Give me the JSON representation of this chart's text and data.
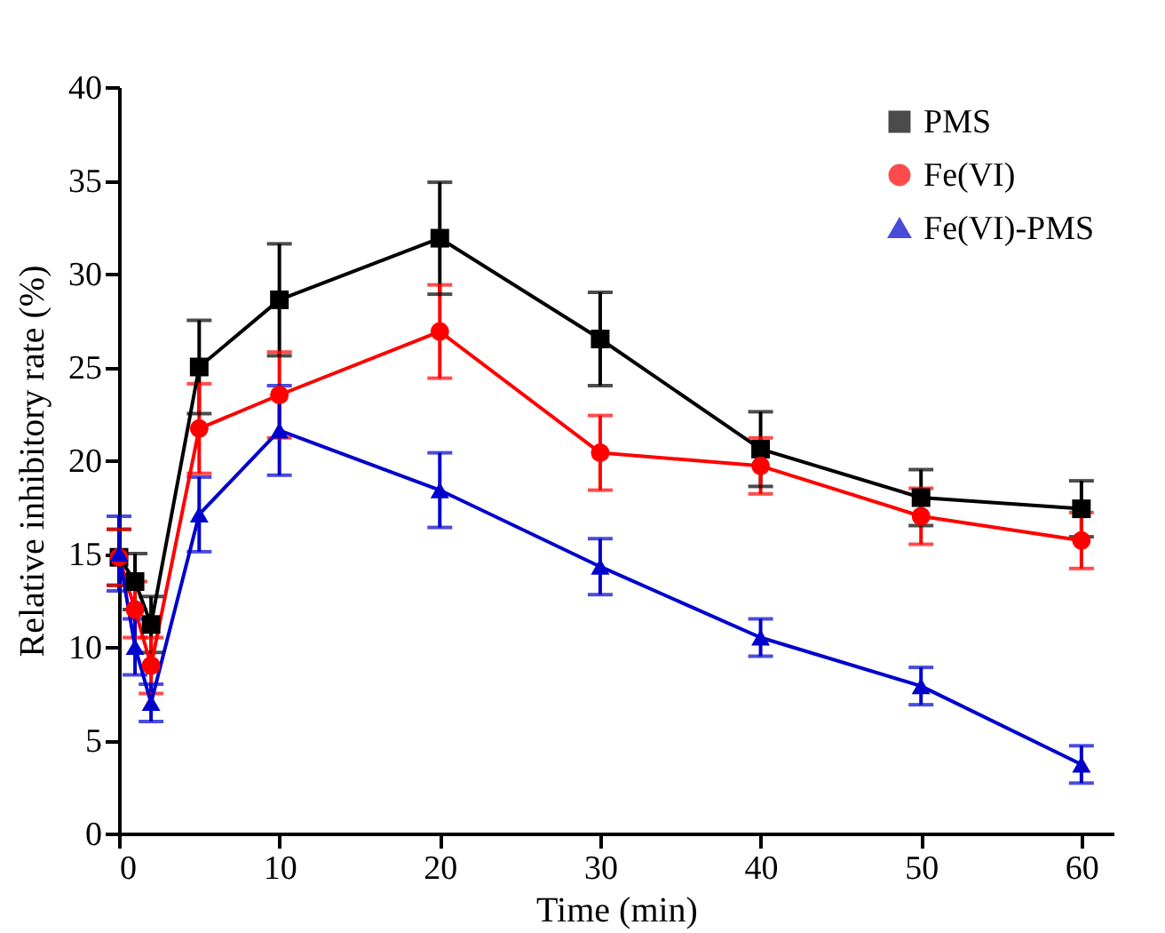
{
  "chart_data": {
    "type": "line",
    "xlabel": "Time (min)",
    "ylabel": "Relative inhibitory rate (%)",
    "x": [
      0,
      1,
      2,
      5,
      10,
      20,
      30,
      40,
      50,
      60
    ],
    "series": [
      {
        "name": "PMS",
        "color": "#000000",
        "marker": "square",
        "values": [
          14.8,
          13.5,
          11.2,
          25.0,
          28.6,
          31.9,
          26.5,
          20.6,
          18.0,
          17.4
        ],
        "errors": [
          1.5,
          1.5,
          1.5,
          2.5,
          3.0,
          3.0,
          2.5,
          2.0,
          1.5,
          1.5
        ]
      },
      {
        "name": "Fe(VI)",
        "color": "#ff0000",
        "marker": "circle",
        "values": [
          14.8,
          12.0,
          9.0,
          21.7,
          23.5,
          26.9,
          20.4,
          19.7,
          17.0,
          15.7
        ],
        "errors": [
          1.5,
          1.5,
          1.5,
          2.4,
          2.3,
          2.5,
          2.0,
          1.5,
          1.5,
          1.5
        ]
      },
      {
        "name": "Fe(VI)-PMS",
        "color": "#0000cc",
        "marker": "triangle",
        "values": [
          15.0,
          10.0,
          7.0,
          17.1,
          21.6,
          18.4,
          14.3,
          10.5,
          7.9,
          3.7
        ],
        "errors": [
          2.0,
          1.5,
          1.0,
          2.0,
          2.4,
          2.0,
          1.5,
          1.0,
          1.0,
          1.0
        ]
      }
    ],
    "xlim": [
      0,
      62
    ],
    "xticks": [
      0,
      10,
      20,
      30,
      40,
      50,
      60
    ],
    "ylim": [
      0,
      40
    ],
    "yticks": [
      0,
      5,
      10,
      15,
      20,
      25,
      30,
      35,
      40
    ],
    "grid": false,
    "legend": "top right",
    "line_style": "solid"
  }
}
